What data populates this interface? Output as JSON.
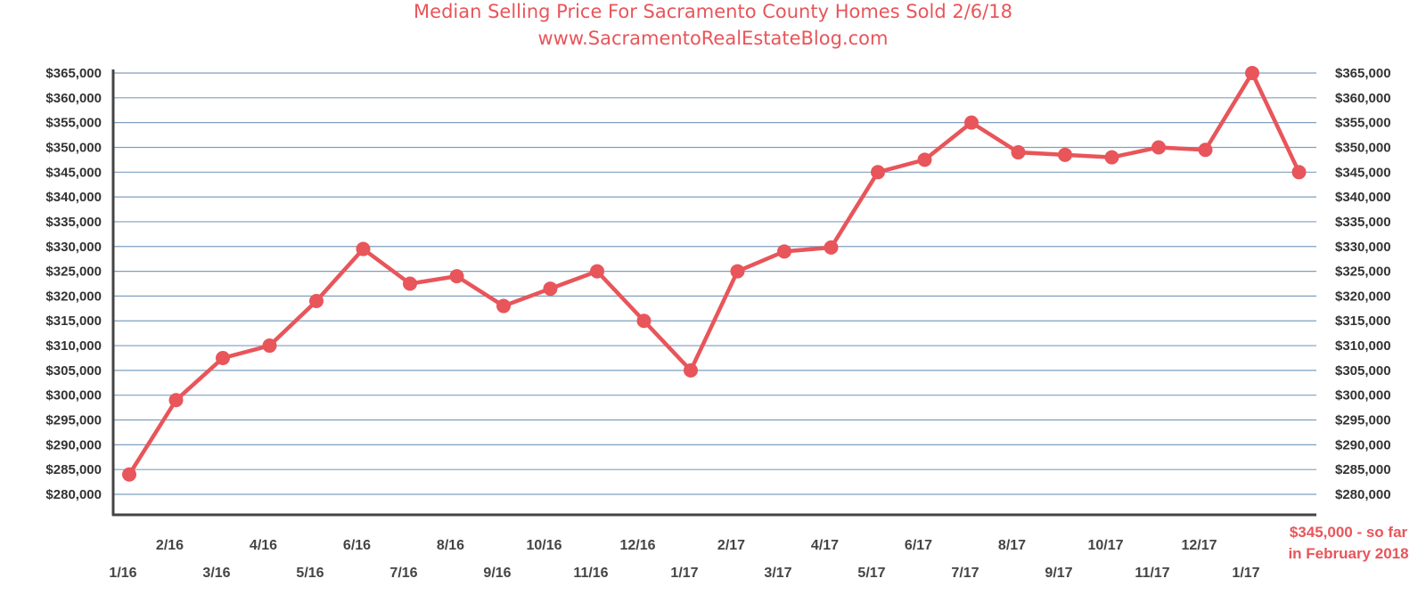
{
  "chart_data": {
    "type": "line",
    "title": "Median Selling Price For Sacramento County Homes Sold 2/6/18",
    "subtitle": "www.SacramentoRealEstateBlog.com",
    "ylim": [
      280000,
      365000
    ],
    "y_ticks": [
      "$280,000",
      "$285,000",
      "$290,000",
      "$295,000",
      "$300,000",
      "$305,000",
      "$310,000",
      "$315,000",
      "$320,000",
      "$325,000",
      "$330,000",
      "$335,000",
      "$340,000",
      "$345,000",
      "$350,000",
      "$355,000",
      "$360,000",
      "$365,000"
    ],
    "categories": [
      "1/16",
      "2/16",
      "3/16",
      "4/16",
      "5/16",
      "6/16",
      "7/16",
      "8/16",
      "9/16",
      "10/16",
      "11/16",
      "12/16",
      "1/17",
      "2/17",
      "3/17",
      "4/17",
      "5/17",
      "6/17",
      "7/17",
      "8/17",
      "9/17",
      "10/17",
      "11/17",
      "12/17",
      "1/17",
      "2/18"
    ],
    "x_tick_labels": [
      "1/16",
      "2/16",
      "3/16",
      "4/16",
      "5/16",
      "6/16",
      "7/16",
      "8/16",
      "9/16",
      "10/16",
      "11/16",
      "12/16",
      "1/17",
      "2/17",
      "3/17",
      "4/17",
      "5/17",
      "6/17",
      "7/17",
      "8/17",
      "9/17",
      "10/17",
      "11/17",
      "12/17",
      "1/17"
    ],
    "series": [
      {
        "values": [
          284000,
          299000,
          307500,
          310000,
          319000,
          329500,
          322500,
          324000,
          318000,
          321500,
          325000,
          315000,
          305000,
          325000,
          329000,
          329800,
          345000,
          347500,
          355000,
          349000,
          348500,
          348000,
          350000,
          349500,
          365000,
          345000
        ]
      }
    ],
    "grid": true,
    "y_axis_mirrored": true,
    "annotation": {
      "line1": "$345,000 - so far",
      "line2": "in February 2018"
    },
    "colors": {
      "series": "#e8555a",
      "grid": "#7f9fbf",
      "axis": "#444444"
    }
  }
}
